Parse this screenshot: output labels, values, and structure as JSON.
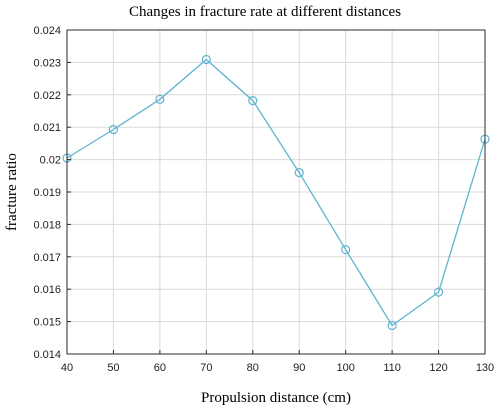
{
  "chart_data": {
    "type": "line",
    "title": "Changes in fracture rate at different distances",
    "xlabel": "Propulsion distance (cm)",
    "ylabel": "fracture ratio",
    "xlim": [
      40,
      130
    ],
    "ylim": [
      0.014,
      0.024
    ],
    "x_ticks": [
      40,
      50,
      60,
      70,
      80,
      90,
      100,
      110,
      120,
      130
    ],
    "y_ticks": [
      "0.014",
      "0.015",
      "0.016",
      "0.017",
      "0.018",
      "0.019",
      "0.02",
      "0.021",
      "0.022",
      "0.023",
      "0.024"
    ],
    "grid": true,
    "marker": "circle",
    "color": "#5fb4cf",
    "series": [
      {
        "x": [
          40,
          50,
          60,
          70,
          80,
          90,
          100,
          110,
          120,
          130
        ],
        "y": [
          0.02005,
          0.02093,
          0.02186,
          0.02309,
          0.02182,
          0.0196,
          0.01722,
          0.01488,
          0.01591,
          0.02063
        ]
      }
    ]
  }
}
